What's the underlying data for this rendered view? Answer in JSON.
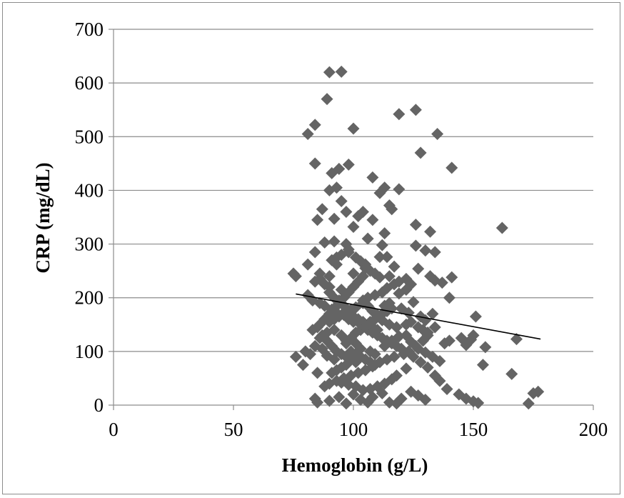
{
  "chart_data": {
    "type": "scatter",
    "title": "",
    "xlabel": "Hemoglobin (g/L)",
    "ylabel": "CRP (mg/dL)",
    "xlim": [
      0,
      200
    ],
    "ylim": [
      0,
      700
    ],
    "x_ticks": [
      "0",
      "50",
      "100",
      "150",
      "200"
    ],
    "y_ticks": [
      "0",
      "100",
      "200",
      "300",
      "400",
      "500",
      "600",
      "700"
    ],
    "grid": "horizontal",
    "legend": "none",
    "marker": "diamond",
    "marker_color": "#646464",
    "trendline": {
      "x": [
        76,
        178
      ],
      "y": [
        207,
        123
      ],
      "color": "#000000"
    },
    "series": [
      {
        "points": [
          [
            90,
            620
          ],
          [
            95,
            621
          ],
          [
            89,
            570
          ],
          [
            126,
            550
          ],
          [
            119,
            542
          ],
          [
            84,
            522
          ],
          [
            81,
            505
          ],
          [
            100,
            515
          ],
          [
            135,
            505
          ],
          [
            128,
            470
          ],
          [
            84,
            450
          ],
          [
            91,
            432
          ],
          [
            94,
            440
          ],
          [
            98,
            448
          ],
          [
            141,
            442
          ],
          [
            108,
            424
          ],
          [
            90,
            400
          ],
          [
            93,
            405
          ],
          [
            113,
            405
          ],
          [
            119,
            402
          ],
          [
            111,
            395
          ],
          [
            95,
            380
          ],
          [
            115,
            372
          ],
          [
            116,
            365
          ],
          [
            87,
            365
          ],
          [
            97,
            360
          ],
          [
            102,
            352
          ],
          [
            104,
            360
          ],
          [
            108,
            345
          ],
          [
            85,
            345
          ],
          [
            92,
            347
          ],
          [
            100,
            332
          ],
          [
            162,
            330
          ],
          [
            126,
            336
          ],
          [
            132,
            323
          ],
          [
            113,
            320
          ],
          [
            97,
            300
          ],
          [
            92,
            305
          ],
          [
            88,
            303
          ],
          [
            106,
            310
          ],
          [
            112,
            298
          ],
          [
            98,
            290
          ],
          [
            126,
            297
          ],
          [
            130,
            288
          ],
          [
            134,
            285
          ],
          [
            84,
            285
          ],
          [
            111,
            276
          ],
          [
            114,
            276
          ],
          [
            117,
            258
          ],
          [
            127,
            254
          ],
          [
            75,
            245
          ],
          [
            76,
            240
          ],
          [
            86,
            245
          ],
          [
            81,
            262
          ],
          [
            93,
            262
          ],
          [
            105,
            262
          ],
          [
            90,
            240
          ],
          [
            100,
            245
          ],
          [
            115,
            240
          ],
          [
            132,
            240
          ],
          [
            141,
            238
          ],
          [
            134,
            232
          ],
          [
            137,
            228
          ],
          [
            122,
            215
          ],
          [
            119,
            208
          ],
          [
            140,
            200
          ],
          [
            81,
            205
          ],
          [
            83,
            195
          ],
          [
            90,
            220
          ],
          [
            95,
            215
          ],
          [
            86,
            190
          ],
          [
            88,
            185
          ],
          [
            91,
            178
          ],
          [
            93,
            172
          ],
          [
            96,
            168
          ],
          [
            98,
            160
          ],
          [
            100,
            155
          ],
          [
            103,
            150
          ],
          [
            104,
            190
          ],
          [
            106,
            185
          ],
          [
            108,
            175
          ],
          [
            110,
            168
          ],
          [
            112,
            158
          ],
          [
            115,
            150
          ],
          [
            118,
            145
          ],
          [
            120,
            180
          ],
          [
            123,
            172
          ],
          [
            125,
            192
          ],
          [
            128,
            165
          ],
          [
            130,
            158
          ],
          [
            133,
            170
          ],
          [
            134,
            145
          ],
          [
            131,
            130
          ],
          [
            129,
            120
          ],
          [
            126,
            110
          ],
          [
            123,
            100
          ],
          [
            121,
            95
          ],
          [
            117,
            90
          ],
          [
            114,
            85
          ],
          [
            111,
            80
          ],
          [
            108,
            72
          ],
          [
            105,
            65
          ],
          [
            102,
            60
          ],
          [
            99,
            55
          ],
          [
            96,
            50
          ],
          [
            93,
            45
          ],
          [
            90,
            40
          ],
          [
            88,
            35
          ],
          [
            85,
            60
          ],
          [
            82,
            95
          ],
          [
            80,
            100
          ],
          [
            79,
            75
          ],
          [
            76,
            90
          ],
          [
            84,
            110
          ],
          [
            86,
            125
          ],
          [
            89,
            135
          ],
          [
            92,
            140
          ],
          [
            95,
            130
          ],
          [
            97,
            120
          ],
          [
            101,
            115
          ],
          [
            103,
            105
          ],
          [
            107,
            100
          ],
          [
            109,
            95
          ],
          [
            113,
            110
          ],
          [
            116,
            120
          ],
          [
            119,
            128
          ],
          [
            122,
            130
          ],
          [
            124,
            118
          ],
          [
            127,
            105
          ],
          [
            130,
            98
          ],
          [
            133,
            90
          ],
          [
            136,
            82
          ],
          [
            138,
            115
          ],
          [
            140,
            120
          ],
          [
            145,
            125
          ],
          [
            147,
            112
          ],
          [
            149,
            122
          ],
          [
            150,
            130
          ],
          [
            151,
            165
          ],
          [
            155,
            108
          ],
          [
            154,
            75
          ],
          [
            144,
            20
          ],
          [
            147,
            12
          ],
          [
            150,
            7
          ],
          [
            152,
            4
          ],
          [
            166,
            58
          ],
          [
            168,
            123
          ],
          [
            173,
            3
          ],
          [
            175,
            22
          ],
          [
            177,
            25
          ],
          [
            84,
            12
          ],
          [
            85,
            5
          ],
          [
            90,
            8
          ],
          [
            94,
            15
          ],
          [
            97,
            3
          ],
          [
            100,
            20
          ],
          [
            103,
            10
          ],
          [
            106,
            5
          ],
          [
            108,
            15
          ],
          [
            112,
            22
          ],
          [
            115,
            5
          ],
          [
            118,
            3
          ],
          [
            120,
            12
          ],
          [
            124,
            25
          ],
          [
            127,
            18
          ],
          [
            130,
            10
          ],
          [
            134,
            55
          ],
          [
            136,
            45
          ],
          [
            139,
            30
          ],
          [
            131,
            70
          ],
          [
            128,
            80
          ],
          [
            125,
            90
          ],
          [
            122,
            68
          ],
          [
            118,
            55
          ],
          [
            116,
            48
          ],
          [
            113,
            40
          ],
          [
            110,
            35
          ],
          [
            107,
            30
          ],
          [
            104,
            28
          ],
          [
            101,
            35
          ],
          [
            98,
            38
          ],
          [
            95,
            42
          ],
          [
            92,
            85
          ],
          [
            89,
            92
          ],
          [
            87,
            105
          ],
          [
            90,
            155
          ],
          [
            92,
            160
          ],
          [
            94,
            165
          ],
          [
            96,
            172
          ],
          [
            99,
            178
          ],
          [
            101,
            182
          ],
          [
            104,
            195
          ],
          [
            106,
            200
          ],
          [
            109,
            205
          ],
          [
            112,
            210
          ],
          [
            114,
            218
          ],
          [
            117,
            225
          ],
          [
            119,
            230
          ],
          [
            122,
            235
          ],
          [
            124,
            225
          ],
          [
            91,
            270
          ],
          [
            93,
            275
          ],
          [
            95,
            280
          ],
          [
            98,
            285
          ],
          [
            101,
            275
          ],
          [
            103,
            268
          ],
          [
            105,
            255
          ],
          [
            107,
            250
          ],
          [
            109,
            245
          ],
          [
            111,
            238
          ],
          [
            86,
            150
          ],
          [
            88,
            160
          ],
          [
            90,
            170
          ],
          [
            92,
            180
          ],
          [
            94,
            190
          ],
          [
            96,
            200
          ],
          [
            98,
            210
          ],
          [
            100,
            220
          ],
          [
            102,
            230
          ],
          [
            104,
            240
          ],
          [
            83,
            140
          ],
          [
            85,
            145
          ],
          [
            87,
            130
          ],
          [
            89,
            120
          ],
          [
            91,
            110
          ],
          [
            93,
            100
          ],
          [
            95,
            95
          ],
          [
            97,
            90
          ],
          [
            99,
            85
          ],
          [
            101,
            80
          ],
          [
            106,
            140
          ],
          [
            108,
            135
          ],
          [
            110,
            130
          ],
          [
            112,
            125
          ],
          [
            114,
            120
          ],
          [
            116,
            115
          ],
          [
            118,
            110
          ],
          [
            120,
            105
          ],
          [
            122,
            150
          ],
          [
            124,
            155
          ],
          [
            127,
            145
          ],
          [
            129,
            140
          ],
          [
            131,
            135
          ],
          [
            84,
            230
          ],
          [
            86,
            235
          ],
          [
            88,
            225
          ],
          [
            90,
            210
          ],
          [
            92,
            200
          ],
          [
            94,
            195
          ],
          [
            96,
            185
          ],
          [
            98,
            175
          ],
          [
            100,
            165
          ],
          [
            102,
            160
          ],
          [
            104,
            155
          ],
          [
            106,
            150
          ],
          [
            108,
            145
          ],
          [
            110,
            140
          ],
          [
            112,
            170
          ],
          [
            114,
            175
          ],
          [
            116,
            180
          ],
          [
            97,
            115
          ],
          [
            99,
            125
          ],
          [
            101,
            135
          ],
          [
            103,
            140
          ],
          [
            105,
            145
          ],
          [
            107,
            155
          ],
          [
            109,
            160
          ],
          [
            111,
            165
          ],
          [
            113,
            185
          ],
          [
            115,
            190
          ],
          [
            91,
            60
          ],
          [
            93,
            65
          ],
          [
            95,
            70
          ],
          [
            97,
            75
          ],
          [
            99,
            100
          ],
          [
            101,
            95
          ],
          [
            103,
            90
          ],
          [
            105,
            85
          ],
          [
            107,
            80
          ],
          [
            109,
            75
          ]
        ]
      }
    ]
  }
}
